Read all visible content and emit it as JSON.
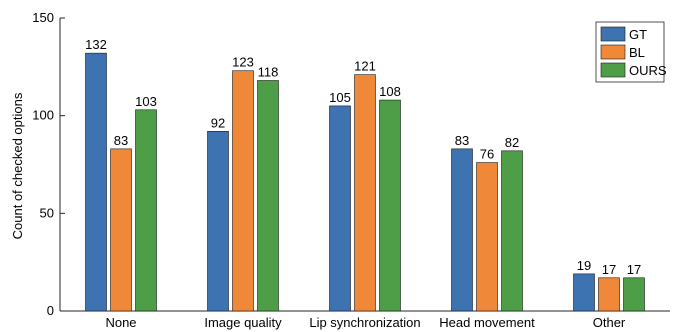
{
  "chart_data": {
    "type": "bar",
    "title": "",
    "xlabel": "",
    "ylabel": "Count of checked options",
    "ylim": [
      0,
      150
    ],
    "yticks": [
      0,
      50,
      100,
      150
    ],
    "categories": [
      "None",
      "Image quality",
      "Lip synchronization",
      "Head movement",
      "Other"
    ],
    "series": [
      {
        "name": "GT",
        "color": "#3d73b1",
        "values": [
          132,
          92,
          105,
          83,
          19
        ]
      },
      {
        "name": "BL",
        "color": "#f0883a",
        "values": [
          83,
          123,
          121,
          76,
          17
        ]
      },
      {
        "name": "OURS",
        "color": "#4e9e47",
        "values": [
          103,
          118,
          108,
          82,
          17
        ]
      }
    ],
    "legend_position": "top-right",
    "grid": false
  }
}
